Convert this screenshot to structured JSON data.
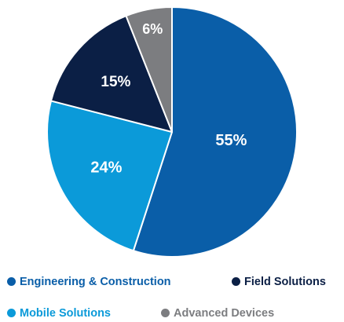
{
  "chart_data": {
    "type": "pie",
    "title": "",
    "start_angle_deg": 0,
    "direction": "clockwise",
    "slices": [
      {
        "name": "Engineering & Construction",
        "value": 55,
        "label": "55%",
        "color": "#0a5ea8",
        "label_color": "#0a5ea8"
      },
      {
        "name": "Mobile Solutions",
        "value": 24,
        "label": "24%",
        "color": "#0b9ad9",
        "label_color": "#0b9ad9"
      },
      {
        "name": "Field Solutions",
        "value": 15,
        "label": "15%",
        "color": "#0b1f45",
        "label_color": "#0b1f45"
      },
      {
        "name": "Advanced Devices",
        "value": 6,
        "label": "6%",
        "color": "#7c7d80",
        "label_color": "#7c7d80"
      }
    ],
    "legend_position": "bottom"
  }
}
